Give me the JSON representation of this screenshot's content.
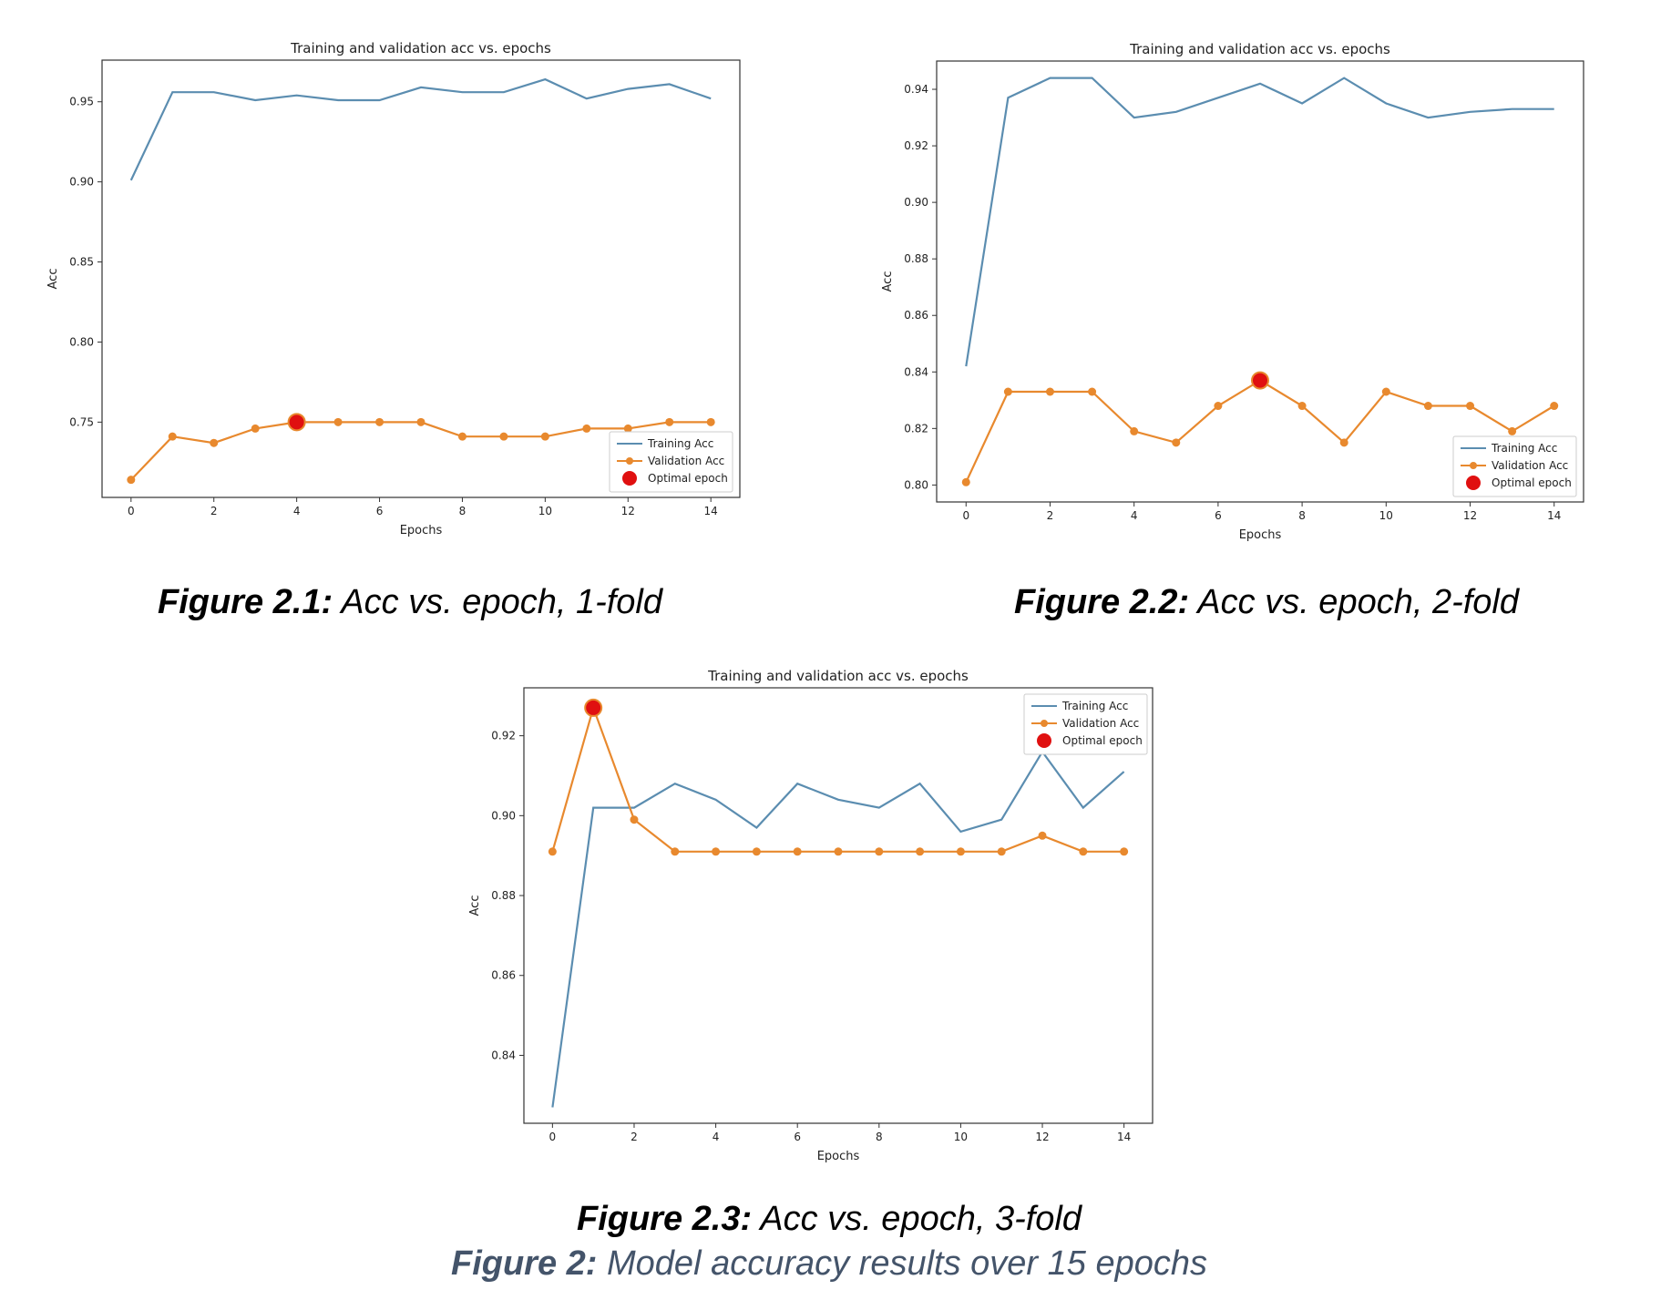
{
  "chart_data": [
    {
      "type": "line",
      "title": "Training and validation acc vs. epochs",
      "xlabel": "Epochs",
      "ylabel": "Acc",
      "x": [
        0,
        1,
        2,
        3,
        4,
        5,
        6,
        7,
        8,
        9,
        10,
        11,
        12,
        13,
        14
      ],
      "xticks": [
        0,
        2,
        4,
        6,
        8,
        10,
        12,
        14
      ],
      "yticks": [
        0.75,
        0.8,
        0.85,
        0.9,
        0.95
      ],
      "ylim": [
        0.703,
        0.976
      ],
      "legend_position": "lower right",
      "series": [
        {
          "name": "Training Acc",
          "color": "#5b8db0",
          "values": [
            0.901,
            0.956,
            0.956,
            0.951,
            0.954,
            0.951,
            0.951,
            0.959,
            0.956,
            0.956,
            0.964,
            0.952,
            0.958,
            0.961,
            0.952
          ]
        },
        {
          "name": "Validation Acc",
          "color": "#e8892e",
          "marker": "circle",
          "values": [
            0.714,
            0.741,
            0.737,
            0.746,
            0.75,
            0.75,
            0.75,
            0.75,
            0.741,
            0.741,
            0.741,
            0.746,
            0.746,
            0.75,
            0.75
          ]
        }
      ],
      "optimal": {
        "name": "Optimal epoch",
        "color": "#e01010",
        "x": 4,
        "y": 0.75
      }
    },
    {
      "type": "line",
      "title": "Training and validation acc vs. epochs",
      "xlabel": "Epochs",
      "ylabel": "Acc",
      "x": [
        0,
        1,
        2,
        3,
        4,
        5,
        6,
        7,
        8,
        9,
        10,
        11,
        12,
        13,
        14
      ],
      "xticks": [
        0,
        2,
        4,
        6,
        8,
        10,
        12,
        14
      ],
      "yticks": [
        0.8,
        0.82,
        0.84,
        0.86,
        0.88,
        0.9,
        0.92,
        0.94
      ],
      "ylim": [
        0.794,
        0.95
      ],
      "legend_position": "lower right",
      "series": [
        {
          "name": "Training Acc",
          "color": "#5b8db0",
          "values": [
            0.842,
            0.937,
            0.944,
            0.944,
            0.93,
            0.932,
            0.937,
            0.942,
            0.935,
            0.944,
            0.935,
            0.93,
            0.932,
            0.933,
            0.933
          ]
        },
        {
          "name": "Validation Acc",
          "color": "#e8892e",
          "marker": "circle",
          "values": [
            0.801,
            0.833,
            0.833,
            0.833,
            0.819,
            0.815,
            0.828,
            0.837,
            0.828,
            0.815,
            0.833,
            0.828,
            0.828,
            0.819,
            0.828
          ]
        }
      ],
      "optimal": {
        "name": "Optimal epoch",
        "color": "#e01010",
        "x": 7,
        "y": 0.837
      }
    },
    {
      "type": "line",
      "title": "Training and validation acc vs. epochs",
      "xlabel": "Epochs",
      "ylabel": "Acc",
      "x": [
        0,
        1,
        2,
        3,
        4,
        5,
        6,
        7,
        8,
        9,
        10,
        11,
        12,
        13,
        14
      ],
      "xticks": [
        0,
        2,
        4,
        6,
        8,
        10,
        12,
        14
      ],
      "yticks": [
        0.84,
        0.86,
        0.88,
        0.9,
        0.92
      ],
      "ylim": [
        0.823,
        0.932
      ],
      "legend_position": "upper right",
      "series": [
        {
          "name": "Training Acc",
          "color": "#5b8db0",
          "values": [
            0.827,
            0.902,
            0.902,
            0.908,
            0.904,
            0.897,
            0.908,
            0.904,
            0.902,
            0.908,
            0.896,
            0.899,
            0.916,
            0.902,
            0.911
          ]
        },
        {
          "name": "Validation Acc",
          "color": "#e8892e",
          "marker": "circle",
          "values": [
            0.891,
            0.927,
            0.899,
            0.891,
            0.891,
            0.891,
            0.891,
            0.891,
            0.891,
            0.891,
            0.891,
            0.891,
            0.895,
            0.891,
            0.891
          ]
        }
      ],
      "optimal": {
        "name": "Optimal epoch",
        "color": "#e01010",
        "x": 1,
        "y": 0.927
      }
    }
  ],
  "captions": {
    "fig1": {
      "label": "Figure 2.1:",
      "text": " Acc vs. epoch, 1-fold"
    },
    "fig2": {
      "label": "Figure 2.2:",
      "text": " Acc vs. epoch, 2-fold"
    },
    "fig3": {
      "label": "Figure 2.3:",
      "text": " Acc vs. epoch, 3-fold"
    },
    "main": {
      "label": "Figure 2:",
      "text": " Model accuracy results over 15 epochs"
    }
  }
}
